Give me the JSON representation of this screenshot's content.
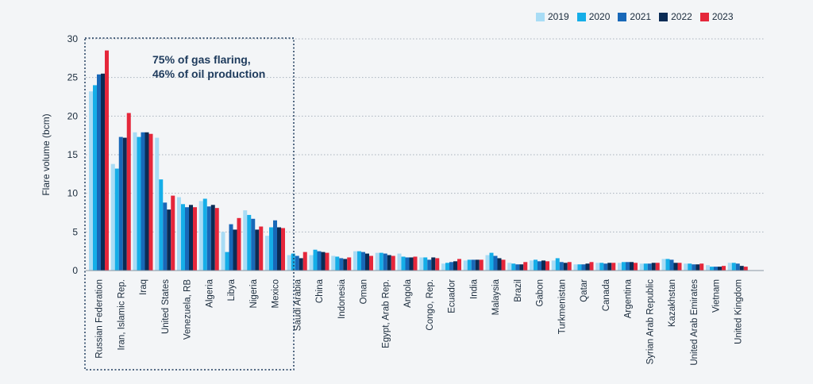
{
  "chart_data": {
    "type": "bar",
    "ylabel": "Flare volume (bcm)",
    "ylim": [
      0,
      30
    ],
    "yticks": [
      0,
      5,
      10,
      15,
      20,
      25,
      30
    ],
    "grid": true,
    "legend_position": "top-right",
    "annotation": [
      "75% of gas flaring,",
      "46% of oil production"
    ],
    "categories": [
      "Russian Federation",
      "Iran, Islamic Rep.",
      "Iraq",
      "United States",
      "Venezuela, RB",
      "Algeria",
      "Libya",
      "Nigeria",
      "Mexico",
      "Saudi Arabia",
      "China",
      "Indonesia",
      "Oman",
      "Egypt, Arab Rep.",
      "Angola",
      "Congo, Rep.",
      "Ecuador",
      "India",
      "Malaysia",
      "Brazil",
      "Gabon",
      "Turkmenistan",
      "Qatar",
      "Canada",
      "Argentina",
      "Syrian Arab Republic",
      "Kazakhstan",
      "United Arab Emirates",
      "Vietnam",
      "United Kingdom"
    ],
    "series": [
      {
        "name": "2019",
        "color": "#a8dcf5",
        "values": [
          23.2,
          13.8,
          17.9,
          17.2,
          9.5,
          9.0,
          5.0,
          7.8,
          4.5,
          2.0,
          2.0,
          1.9,
          2.5,
          2.3,
          2.2,
          1.7,
          0.9,
          1.3,
          2.0,
          1.0,
          1.3,
          1.3,
          0.8,
          1.0,
          1.0,
          0.9,
          1.5,
          0.9,
          0.7,
          1.0
        ]
      },
      {
        "name": "2020",
        "color": "#15aee8",
        "values": [
          24.0,
          13.2,
          17.3,
          11.8,
          8.6,
          9.3,
          2.4,
          7.2,
          5.6,
          2.2,
          2.7,
          1.8,
          2.5,
          2.3,
          1.8,
          1.7,
          1.0,
          1.4,
          2.3,
          0.9,
          1.4,
          1.6,
          0.8,
          1.0,
          1.1,
          0.9,
          1.5,
          0.9,
          0.5,
          1.0
        ]
      },
      {
        "name": "2021",
        "color": "#1868b8",
        "values": [
          25.4,
          17.3,
          17.9,
          8.8,
          8.2,
          8.3,
          6.0,
          6.7,
          6.5,
          1.9,
          2.5,
          1.6,
          2.4,
          2.2,
          1.7,
          1.4,
          1.1,
          1.4,
          1.9,
          0.8,
          1.2,
          1.1,
          0.8,
          0.9,
          1.1,
          0.9,
          1.4,
          0.8,
          0.5,
          0.9
        ]
      },
      {
        "name": "2022",
        "color": "#0b2c55",
        "values": [
          25.5,
          17.2,
          17.9,
          7.9,
          8.5,
          8.5,
          5.3,
          5.3,
          5.6,
          1.6,
          2.4,
          1.5,
          2.2,
          2.0,
          1.7,
          1.7,
          1.2,
          1.4,
          1.6,
          0.8,
          1.3,
          1.0,
          0.9,
          1.0,
          1.1,
          1.0,
          1.0,
          0.8,
          0.5,
          0.6
        ]
      },
      {
        "name": "2023",
        "color": "#e5273b",
        "values": [
          28.5,
          20.4,
          17.7,
          9.7,
          8.2,
          8.1,
          6.8,
          5.7,
          5.5,
          2.4,
          2.3,
          1.7,
          1.9,
          1.9,
          1.8,
          1.6,
          1.5,
          1.4,
          1.4,
          1.1,
          1.2,
          1.1,
          1.1,
          1.0,
          1.0,
          1.0,
          1.0,
          0.9,
          0.6,
          0.5
        ]
      }
    ]
  }
}
